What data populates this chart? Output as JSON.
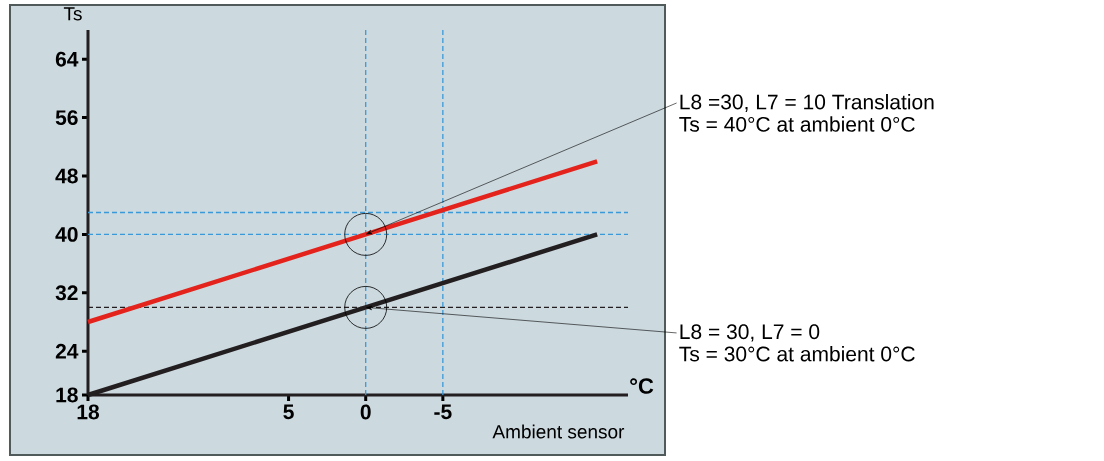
{
  "chart_data": {
    "type": "line",
    "ylabel": "Ts",
    "xlabel": "Ambient sensor",
    "xlim": [
      18,
      -17
    ],
    "xticks": [
      18,
      5,
      0,
      -5
    ],
    "ylim": [
      18,
      68
    ],
    "yticks": [
      18,
      24,
      32,
      40,
      48,
      56,
      64
    ],
    "marker": "none",
    "line_style": "solid",
    "series": [
      {
        "color": "#e3231c",
        "x": [
          18,
          0,
          -15
        ],
        "values": [
          28,
          40,
          50
        ]
      },
      {
        "color": "#231f20",
        "x": [
          18,
          0,
          -15
        ],
        "values": [
          18,
          30,
          40
        ]
      }
    ],
    "ref_lines": [
      {
        "axis": "y",
        "value": 43,
        "color": "#3a9ad9",
        "line_style": "dashed"
      },
      {
        "axis": "y",
        "value": 40,
        "color": "#3a9ad9",
        "line_style": "dashed"
      },
      {
        "axis": "y",
        "value": 30,
        "color": "#231f20",
        "line_style": "dashed"
      },
      {
        "axis": "x",
        "value": 0,
        "color": "#3a9ad9",
        "line_style": "dashed"
      },
      {
        "axis": "x",
        "value": -5,
        "color": "#3a9ad9",
        "line_style": "dashed"
      }
    ],
    "annotations": [
      "°C",
      {
        "text": "L8 =30, L7 = 10 Translation",
        "x": 0,
        "y": 40
      },
      "Ts = 40°C at ambient 0°C",
      {
        "text": "L8 = 30, L7 = 0",
        "x": 0,
        "y": 30
      },
      "Ts = 30°C at ambient 0°C"
    ]
  }
}
